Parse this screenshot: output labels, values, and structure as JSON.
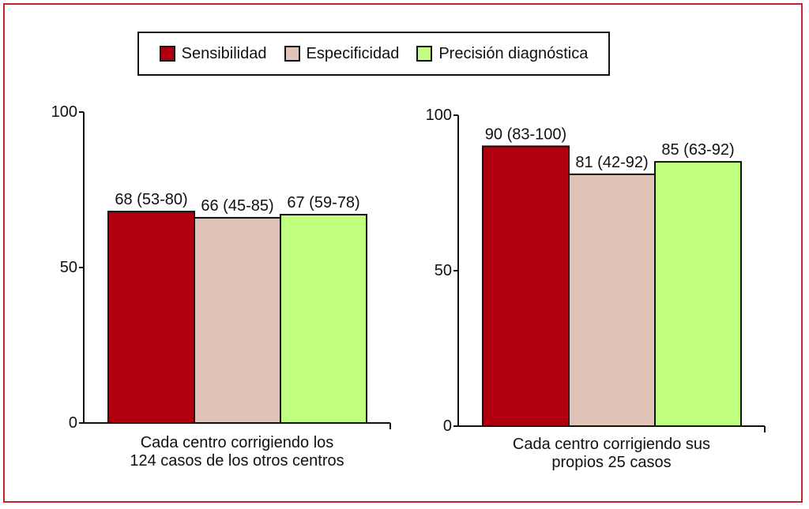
{
  "colors": {
    "frame": "#c0252d",
    "sensibilidad": "#b00010",
    "especificidad": "#e0c4b8",
    "precision": "#c0ff80",
    "axis": "#111111"
  },
  "legend": {
    "items": [
      {
        "label": "Sensibilidad",
        "color": "#b00010"
      },
      {
        "label": "Especificidad",
        "color": "#e0c4b8"
      },
      {
        "label": "Precisión diagnóstica",
        "color": "#c0ff80"
      }
    ]
  },
  "chart_data": [
    {
      "type": "bar",
      "title": "",
      "caption": [
        "Cada centro corrigiendo los",
        "124 casos de los otros centros"
      ],
      "categories": [
        "Sensibilidad",
        "Especificidad",
        "Precisión diagnóstica"
      ],
      "values": [
        68,
        66,
        67
      ],
      "labels": [
        "68 (53-80)",
        "66 (45-85)",
        "67 (59-78)"
      ],
      "ylim": [
        0,
        100
      ],
      "yticks": [
        0,
        50,
        100
      ],
      "ytick_labels": [
        "0",
        "50",
        "100"
      ],
      "grid": false,
      "legend_position": "top"
    },
    {
      "type": "bar",
      "title": "",
      "caption": [
        "Cada centro corrigiendo sus",
        "propios 25 casos"
      ],
      "categories": [
        "Sensibilidad",
        "Especificidad",
        "Precisión diagnóstica"
      ],
      "values": [
        90,
        81,
        85
      ],
      "labels": [
        "90 (83-100)",
        "81 (42-92)",
        "85 (63-92)"
      ],
      "ylim": [
        0,
        100
      ],
      "yticks": [
        0,
        50,
        100
      ],
      "ytick_labels": [
        "0",
        "50",
        "100"
      ],
      "grid": false,
      "legend_position": "top"
    }
  ]
}
